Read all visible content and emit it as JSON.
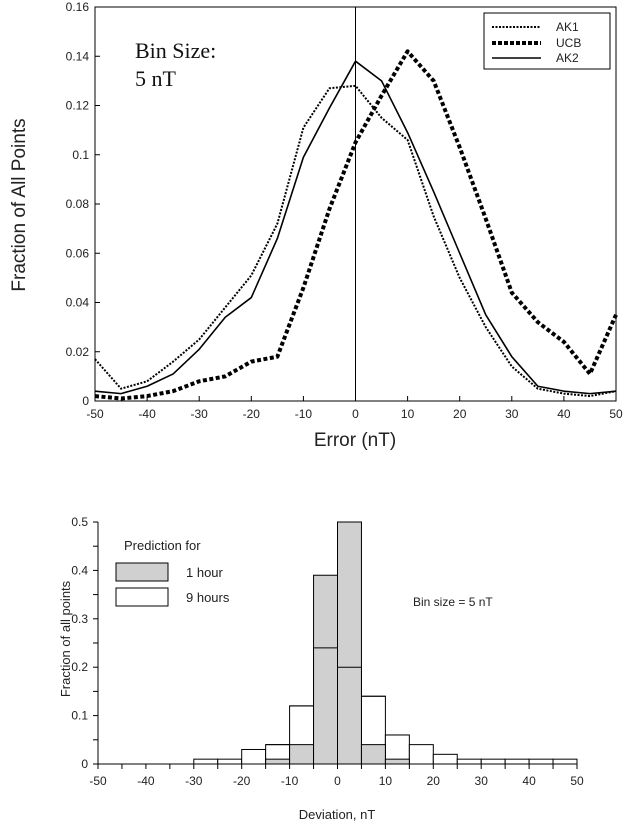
{
  "chart_data": [
    {
      "type": "line",
      "xlabel": "Error (nT)",
      "ylabel": "Fraction of All Points",
      "xlim": [
        -50,
        50
      ],
      "ylim": [
        0,
        0.16
      ],
      "x_ticks": [
        -50,
        -40,
        -30,
        -20,
        -10,
        0,
        10,
        20,
        30,
        40,
        50
      ],
      "y_ticks": [
        "0",
        "0.02",
        "0.04",
        "0.06",
        "0.08",
        "0.1",
        "0.12",
        "0.14",
        "0.16"
      ],
      "annotation": {
        "line1": "Bin Size:",
        "line2": "5 nT"
      },
      "vertical_line_x": 0,
      "legend_position": "top-right",
      "series": [
        {
          "name": "AK1",
          "style": "dotted-thin",
          "x": [
            -50,
            -45,
            -40,
            -35,
            -30,
            -25,
            -20,
            -15,
            -10,
            -5,
            0,
            5,
            10,
            15,
            20,
            25,
            30,
            35,
            40,
            45,
            50
          ],
          "y": [
            0.017,
            0.005,
            0.008,
            0.016,
            0.025,
            0.038,
            0.051,
            0.072,
            0.111,
            0.127,
            0.128,
            0.115,
            0.106,
            0.075,
            0.05,
            0.03,
            0.014,
            0.005,
            0.003,
            0.002,
            0.004
          ]
        },
        {
          "name": "UCB",
          "style": "dashed-thick",
          "x": [
            -50,
            -45,
            -40,
            -35,
            -30,
            -25,
            -20,
            -15,
            -10,
            -5,
            0,
            5,
            10,
            15,
            20,
            25,
            30,
            35,
            40,
            45,
            50
          ],
          "y": [
            0.002,
            0.001,
            0.002,
            0.004,
            0.008,
            0.01,
            0.016,
            0.018,
            0.046,
            0.078,
            0.105,
            0.124,
            0.142,
            0.13,
            0.103,
            0.074,
            0.044,
            0.032,
            0.024,
            0.011,
            0.035
          ]
        },
        {
          "name": "AK2",
          "style": "solid",
          "x": [
            -50,
            -45,
            -40,
            -35,
            -30,
            -25,
            -20,
            -15,
            -10,
            -5,
            0,
            5,
            10,
            15,
            20,
            25,
            30,
            35,
            40,
            45,
            50
          ],
          "y": [
            0.004,
            0.003,
            0.006,
            0.011,
            0.021,
            0.034,
            0.042,
            0.066,
            0.099,
            0.119,
            0.138,
            0.13,
            0.109,
            0.085,
            0.06,
            0.035,
            0.018,
            0.006,
            0.004,
            0.003,
            0.004
          ]
        }
      ]
    },
    {
      "type": "bar",
      "xlabel": "Deviation, nT",
      "ylabel": "Fraction of all points",
      "xlim": [
        -50,
        50
      ],
      "ylim": [
        0,
        0.5
      ],
      "x_ticks": [
        -50,
        -40,
        -30,
        -20,
        -10,
        0,
        10,
        20,
        30,
        40,
        50
      ],
      "y_ticks": [
        "0",
        "0.1",
        "0.2",
        "0.3",
        "0.4",
        "0.5"
      ],
      "legend_title": "Prediction for",
      "annotation": "Bin size = 5 nT",
      "bin_width": 5,
      "bins_start": [
        -30,
        -25,
        -20,
        -15,
        -10,
        -5,
        0,
        5,
        10,
        15,
        20,
        25,
        30,
        35,
        40,
        45
      ],
      "series": [
        {
          "name": "1 hour",
          "fill": "#d0d0d0",
          "values": [
            0,
            0,
            0,
            0.01,
            0.04,
            0.39,
            0.5,
            0.04,
            0.01,
            0,
            0,
            0,
            0,
            0,
            0,
            0
          ]
        },
        {
          "name": "9 hours",
          "fill": "#ffffff",
          "values": [
            0.01,
            0.01,
            0.03,
            0.04,
            0.12,
            0.24,
            0.2,
            0.14,
            0.06,
            0.04,
            0.02,
            0.01,
            0.01,
            0.01,
            0.01,
            0.01
          ]
        }
      ]
    }
  ]
}
